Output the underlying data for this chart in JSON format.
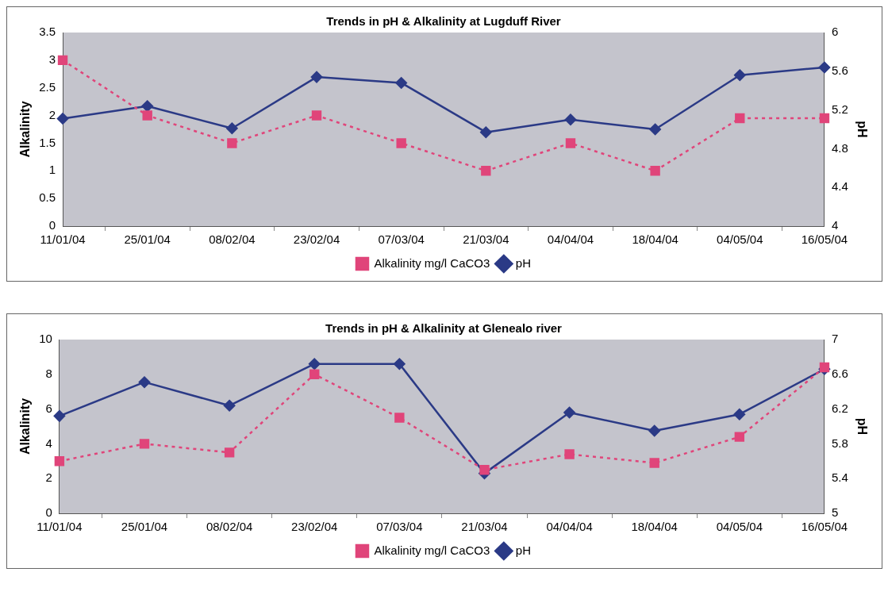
{
  "chart_data": [
    {
      "type": "line",
      "title": "Trends in pH & Alkalinity at Lugduff River",
      "ylabel": "Alkalinity",
      "y2label": "pH",
      "categories": [
        "11/01/04",
        "25/01/04",
        "08/02/04",
        "23/02/04",
        "07/03/04",
        "21/03/04",
        "04/04/04",
        "18/04/04",
        "04/05/04",
        "16/05/04"
      ],
      "series": [
        {
          "name": "Alkalinity mg/l CaCO3",
          "color": "#e0457a",
          "marker": "square",
          "line_style": "dashed",
          "values": [
            3,
            2,
            1.5,
            2,
            1.5,
            1,
            1.5,
            1,
            1.95,
            1.95
          ]
        },
        {
          "name": "pH",
          "color": "#2b3a86",
          "marker": "diamond",
          "line_style": "solid",
          "axis": "y2",
          "values": [
            5.11,
            5.24,
            5.01,
            5.54,
            5.48,
            4.97,
            5.1,
            5.0,
            5.56,
            5.64
          ]
        }
      ],
      "ylim": [
        0,
        3.5
      ],
      "yticks": [
        0,
        0.5,
        1,
        1.5,
        2,
        2.5,
        3,
        3.5
      ],
      "y2lim": [
        4,
        6
      ],
      "y2ticks": [
        4,
        4.4,
        4.8,
        5.2,
        5.6,
        6
      ],
      "legend": "bottom",
      "grid": false
    },
    {
      "type": "line",
      "title": "Trends in pH & Alkalinity at Glenealo river",
      "ylabel": "Alkalinity",
      "y2label": "pH",
      "categories": [
        "11/01/04",
        "25/01/04",
        "08/02/04",
        "23/02/04",
        "07/03/04",
        "21/03/04",
        "04/04/04",
        "18/04/04",
        "04/05/04",
        "16/05/04"
      ],
      "series": [
        {
          "name": "Alkalinity mg/l CaCO3",
          "color": "#e0457a",
          "marker": "square",
          "line_style": "dashed",
          "values": [
            3,
            4,
            3.5,
            8,
            5.5,
            2.5,
            3.4,
            2.9,
            4.4,
            8.4
          ]
        },
        {
          "name": "pH",
          "color": "#2b3a86",
          "marker": "diamond",
          "line_style": "solid",
          "axis": "y2",
          "values": [
            6.12,
            6.51,
            6.24,
            6.72,
            6.72,
            5.46,
            6.16,
            5.95,
            6.14,
            6.66
          ]
        }
      ],
      "ylim": [
        0,
        10
      ],
      "yticks": [
        0,
        2,
        4,
        6,
        8,
        10
      ],
      "y2lim": [
        5,
        7
      ],
      "y2ticks": [
        5,
        5.4,
        5.8,
        6.2,
        6.6,
        7
      ],
      "legend": "bottom",
      "grid": false
    }
  ]
}
